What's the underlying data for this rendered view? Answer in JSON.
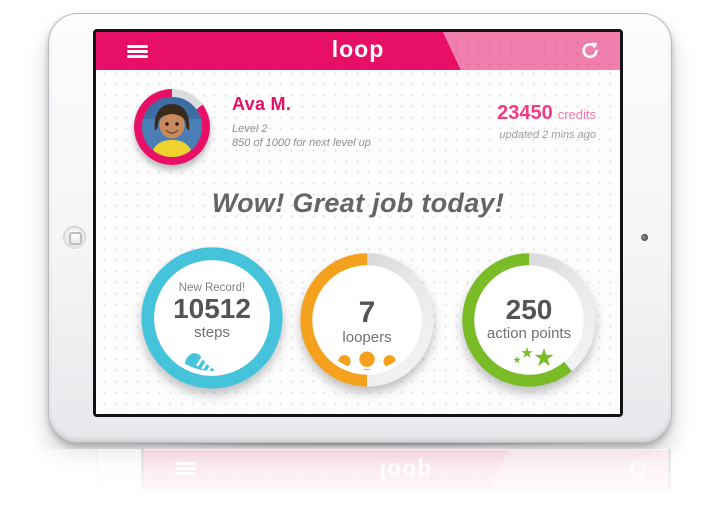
{
  "header": {
    "logo": "loop",
    "menu_icon": "hamburger-icon",
    "refresh_icon": "refresh-icon"
  },
  "profile": {
    "name": "Ava M.",
    "level": "Level 2",
    "next_level": "850 of 1000 for next level up",
    "ring_progress": 0.85
  },
  "credits": {
    "amount": "23450",
    "unit": "credits",
    "updated": "updated 2 mins ago"
  },
  "headline": "Wow! Great job today!",
  "stats": [
    {
      "badge": "New Record!",
      "value": "10512",
      "label": "steps",
      "icon": "sneaker-icon",
      "color": "#45c3db",
      "progress": 1,
      "start_deg": 0
    },
    {
      "value": "7",
      "label": "loopers",
      "icon": "people-icon",
      "color": "#f4a11d",
      "progress": 0.5,
      "start_deg": 180
    },
    {
      "value": "250",
      "label": "action points",
      "icon": "wand-stars-icon",
      "color": "#7abc27",
      "progress": 0.611,
      "start_deg": 140
    }
  ],
  "colors": {
    "pink": "#e81066",
    "pink_light": "#f07fad",
    "credits_pink": "#f23a87",
    "ring_empty": "#dcdcde",
    "steps_blue": "#45c3db",
    "loopers_orange": "#f4a11d",
    "action_green": "#7abc27"
  }
}
